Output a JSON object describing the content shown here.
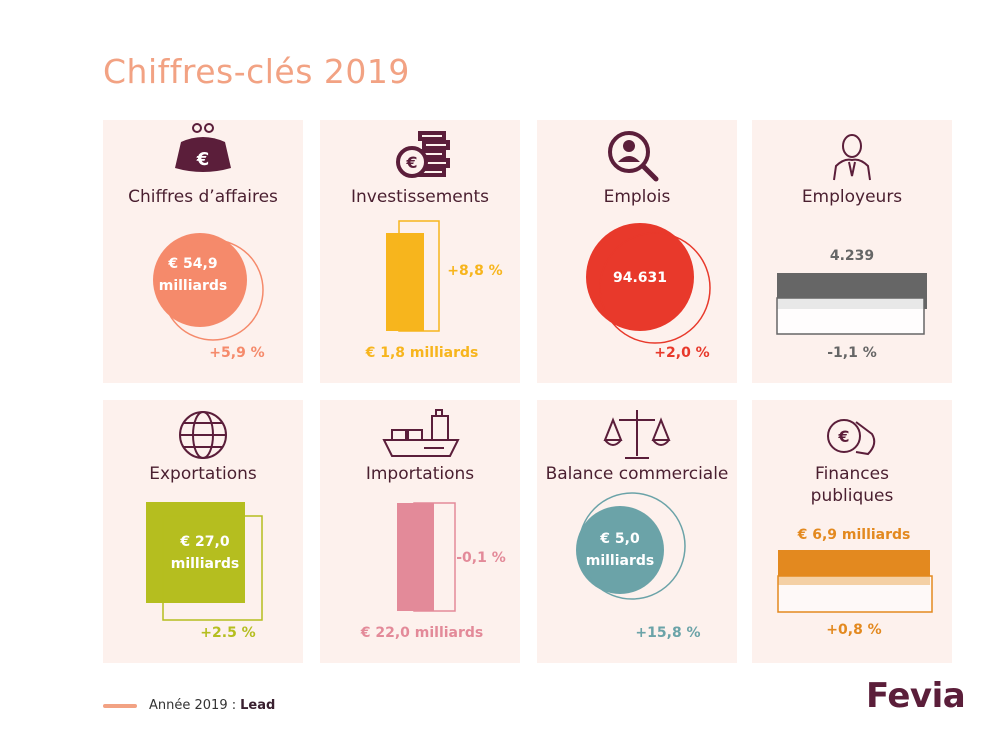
{
  "title": "Chiffres-clés 2019",
  "cards": [
    {
      "title": "Chiffres d’affaires",
      "icon": "purse-euro-icon",
      "value_line1": "€ 54,9",
      "value_line2": "milliards",
      "change": "+5,9 %",
      "color": "#f58a6b"
    },
    {
      "title": "Investissements",
      "icon": "coins-euro-icon",
      "value": "€ 1,8 milliards",
      "change": "+8,8 %",
      "color": "#f7b51d"
    },
    {
      "title": "Emplois",
      "icon": "person-magnifier-icon",
      "value": "94.631",
      "change": "+2,0 %",
      "color": "#e8392b"
    },
    {
      "title": "Employeurs",
      "icon": "businessman-icon",
      "value": "4.239",
      "change": "-1,1 %",
      "color": "#666666"
    },
    {
      "title": "Exportations",
      "icon": "globe-icon",
      "value_line1": "€ 27,0",
      "value_line2": "milliards",
      "change": "+2.5 %",
      "color": "#b5be1f"
    },
    {
      "title": "Importations",
      "icon": "cargo-ship-icon",
      "value": "€ 22,0 milliards",
      "change": "-0,1 %",
      "color": "#e38a99"
    },
    {
      "title": "Balance commerciale",
      "icon": "scales-icon",
      "value_line1": "€ 5,0",
      "value_line2": "milliards",
      "change": "+15,8 %",
      "color": "#6ba3a8"
    },
    {
      "title_line1": "Finances",
      "title_line2": "publiques",
      "icon": "hand-euro-coin-icon",
      "value": "€ 6,9 milliards",
      "change": "+0,8 %",
      "color": "#e3891f"
    }
  ],
  "legend": {
    "text": "Année 2019 :",
    "bold": "Lead",
    "color": "#f2a283"
  },
  "logo": "Fevia"
}
